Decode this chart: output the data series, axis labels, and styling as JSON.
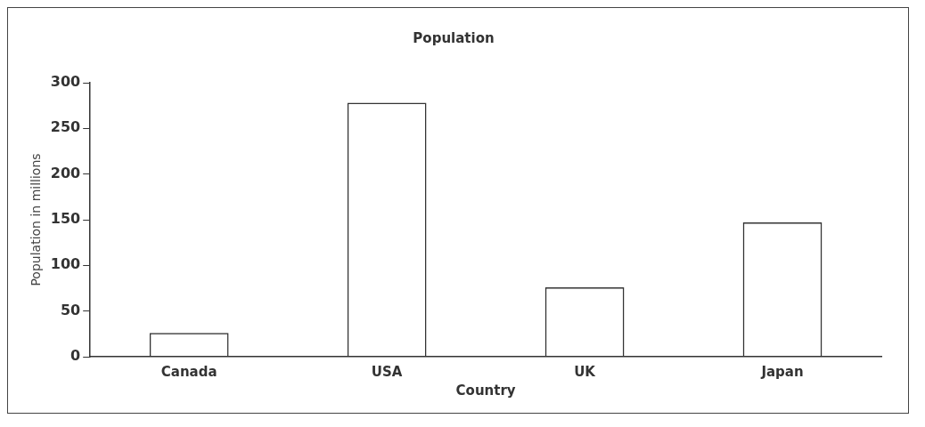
{
  "chart_data": {
    "type": "bar",
    "title": "Population",
    "xlabel": "Country",
    "ylabel": "Population in millions",
    "categories": [
      "Canada",
      "USA",
      "UK",
      "Japan"
    ],
    "values": [
      26,
      278,
      76,
      147
    ],
    "color": "#333333",
    "ylim": [
      0,
      300
    ],
    "yticks": [
      0,
      50,
      100,
      150,
      200,
      250,
      300
    ],
    "grid": false,
    "legend": false
  }
}
